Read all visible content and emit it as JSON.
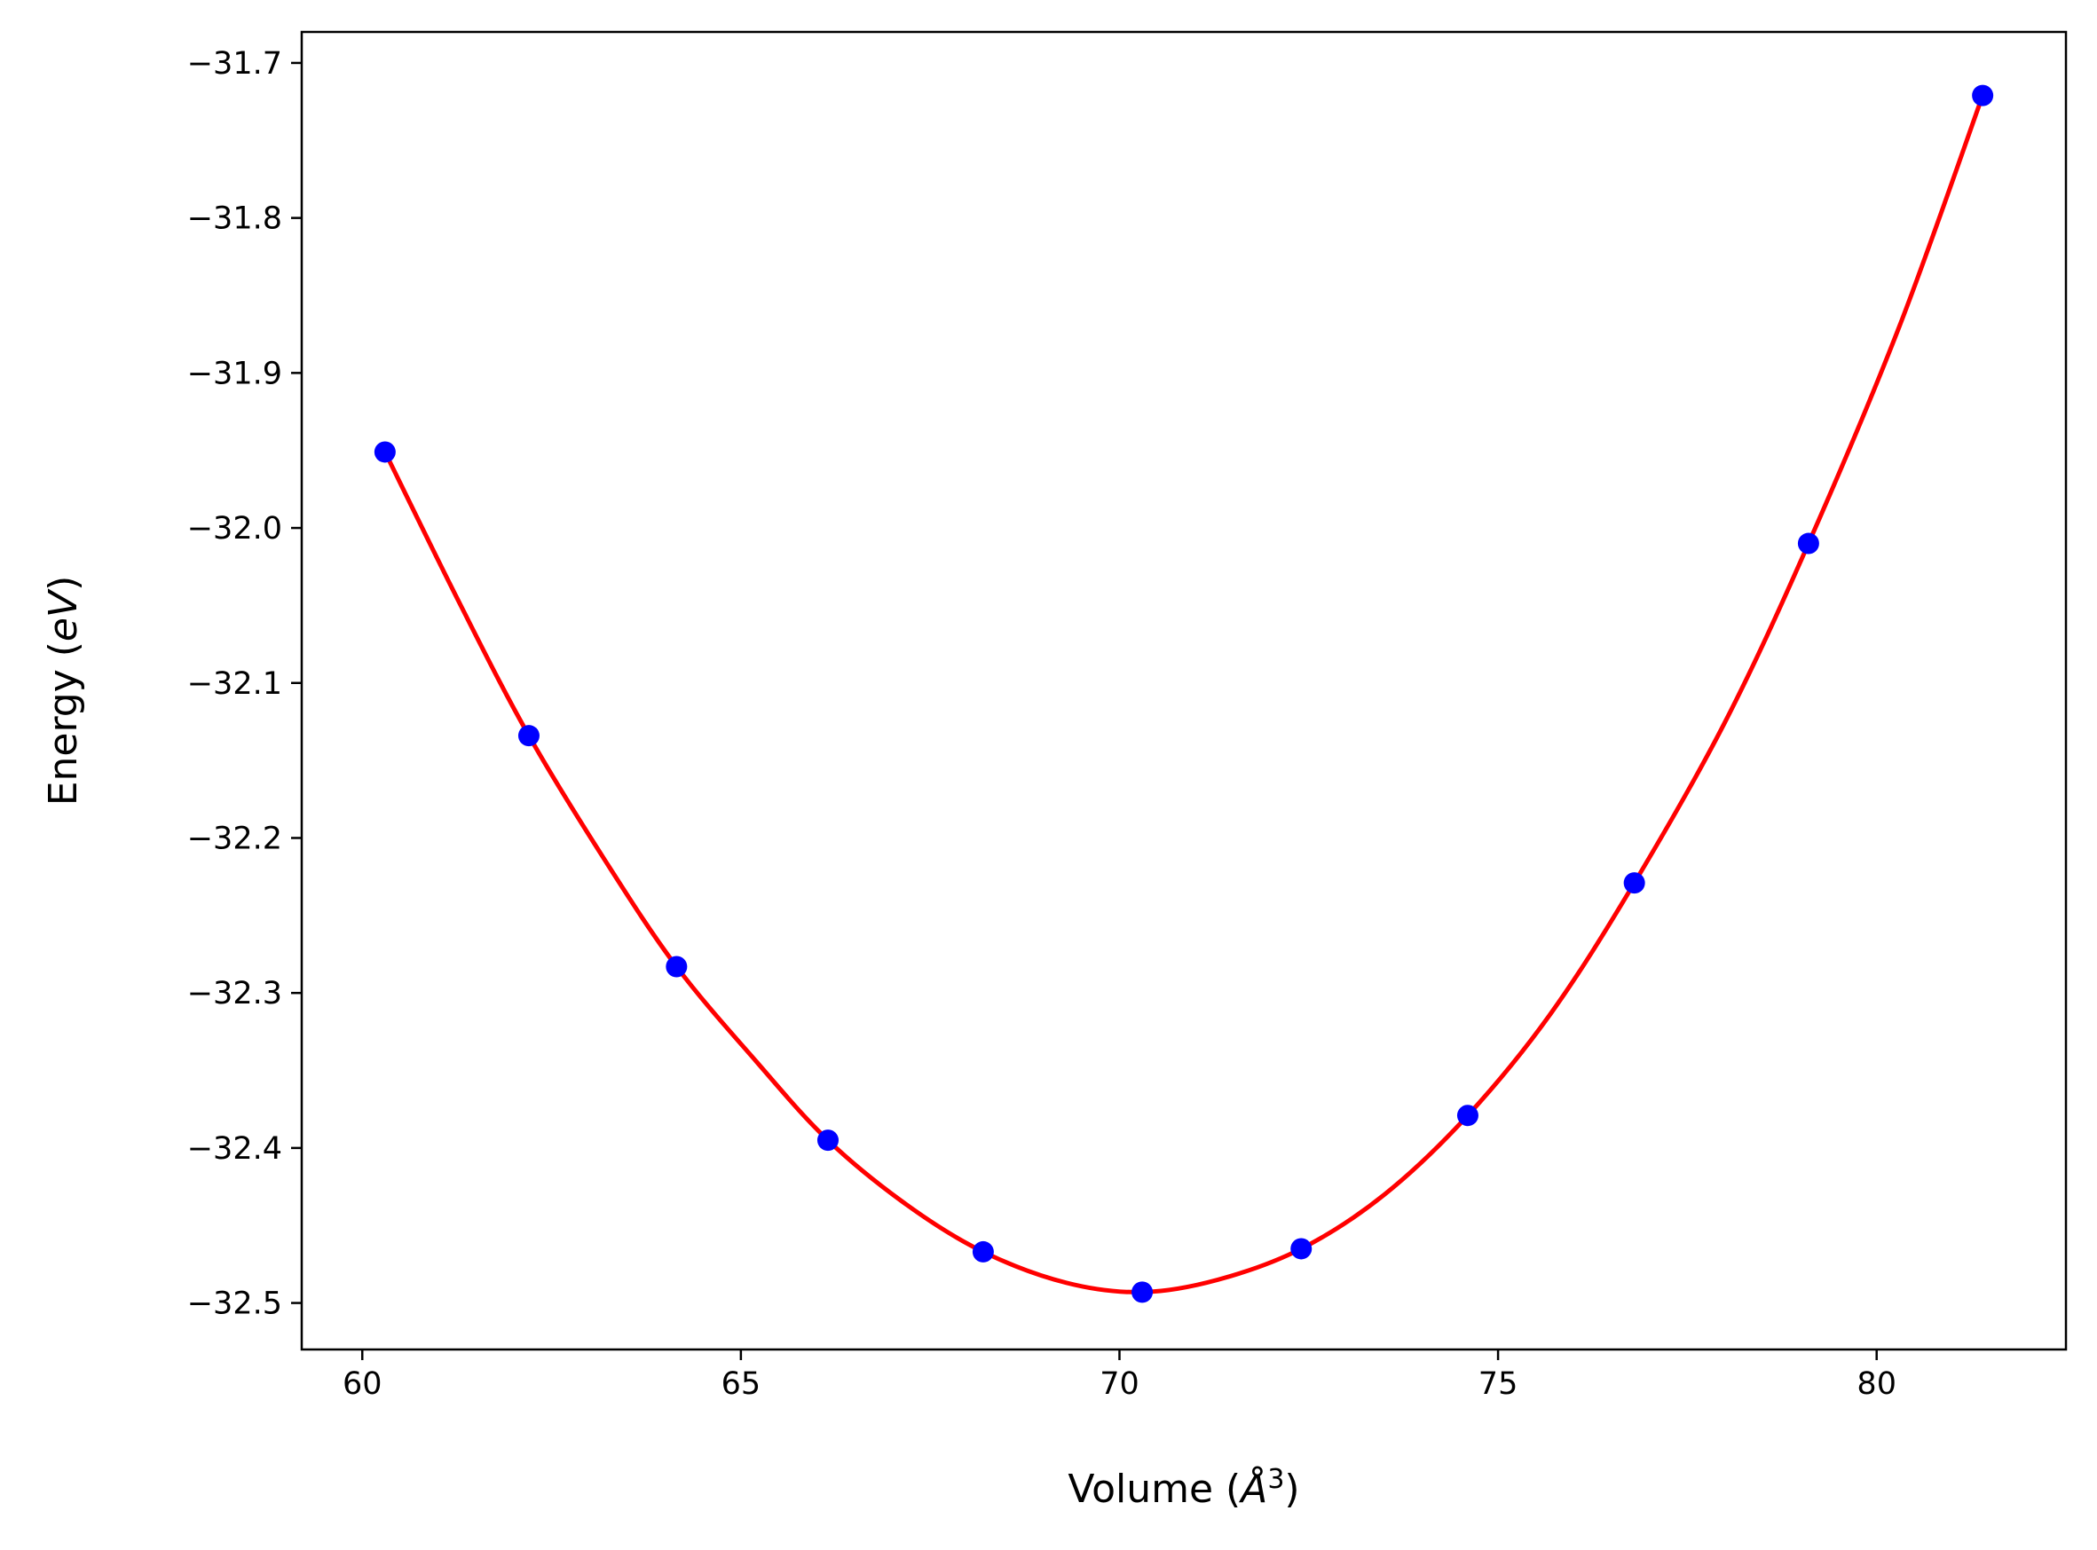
{
  "chart_data": {
    "type": "scatter",
    "title": "",
    "xlabel_parts": {
      "prefix": "Volume (",
      "symbol": "Å",
      "exponent": "3",
      "suffix": ")"
    },
    "ylabel_parts": {
      "prefix": "Energy (",
      "unit": "eV",
      "suffix": ")"
    },
    "xlim": [
      59.2,
      82.5
    ],
    "ylim": [
      -32.53,
      -31.68
    ],
    "xticks": [
      60,
      65,
      70,
      75,
      80
    ],
    "xtick_labels": [
      "60",
      "65",
      "70",
      "75",
      "80"
    ],
    "yticks": [
      -31.7,
      -31.8,
      -31.9,
      -32.0,
      -32.1,
      -32.2,
      -32.3,
      -32.4,
      -32.5
    ],
    "ytick_labels": [
      "−31.7",
      "−31.8",
      "−31.9",
      "−32.0",
      "−32.1",
      "−32.2",
      "−32.3",
      "−32.4",
      "−32.5"
    ],
    "grid": false,
    "series": [
      {
        "kind": "points",
        "color": "#0000ff",
        "x": [
          60.3,
          62.2,
          64.15,
          66.15,
          68.2,
          70.3,
          72.4,
          74.6,
          76.8,
          79.1,
          81.4
        ],
        "y": [
          -31.951,
          -32.134,
          -32.283,
          -32.395,
          -32.467,
          -32.493,
          -32.465,
          -32.379,
          -32.229,
          -32.01,
          -31.721
        ]
      },
      {
        "kind": "fit-curve",
        "color": "#ff0000",
        "x": [
          60.3,
          61.3,
          62.2,
          63.2,
          64.15,
          65.2,
          66.15,
          67.2,
          68.2,
          69.3,
          70.3,
          71.3,
          72.4,
          73.5,
          74.6,
          75.7,
          76.8,
          78.0,
          79.1,
          80.3,
          81.4
        ],
        "y": [
          -31.951,
          -32.05,
          -32.134,
          -32.214,
          -32.283,
          -32.344,
          -32.395,
          -32.437,
          -32.467,
          -32.487,
          -32.493,
          -32.485,
          -32.465,
          -32.43,
          -32.379,
          -32.313,
          -32.229,
          -32.125,
          -32.01,
          -31.87,
          -31.721
        ]
      }
    ]
  }
}
